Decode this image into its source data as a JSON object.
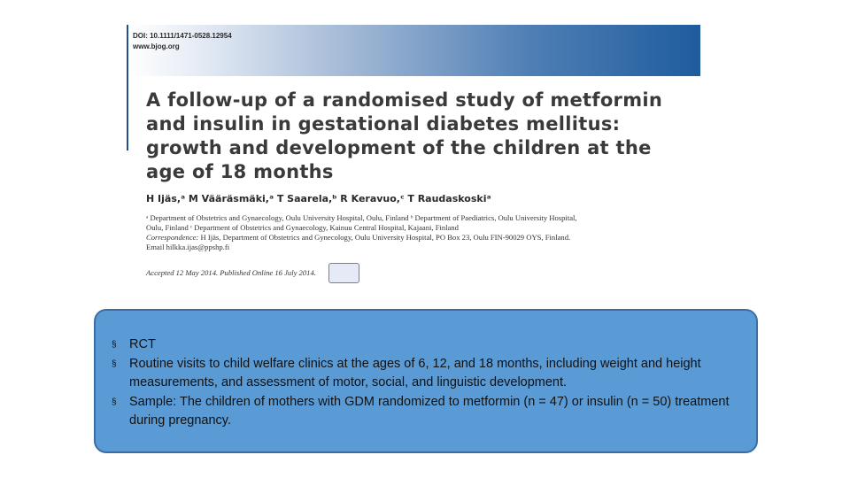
{
  "paper": {
    "doi": "DOI: 10.1111/1471-0528.12954",
    "site": "www.bjog.org",
    "title_lines": [
      "A follow-up of a randomised study of metformin",
      "and insulin in gestational diabetes mellitus:",
      "growth and development of the children at the",
      "age of 18 months"
    ],
    "authors": "H Ijäs,ᵃ M Vääräsmäki,ᵃ T Saarela,ᵇ R Keravuo,ᶜ T Raudaskoskiᵃ",
    "affiliation_lines": [
      "ᵃ Department of Obstetrics and Gynaecology, Oulu University Hospital, Oulu, Finland ᵇ Department of Paediatrics, Oulu University Hospital,",
      "Oulu, Finland ᶜ Department of Obstetrics and Gynaecology, Kainuu Central Hospital, Kajaani, Finland"
    ],
    "correspondence_label": "Correspondence:",
    "correspondence_text": " H Ijäs, Department of Obstetrics and Gynecology, Oulu University Hospital, PO Box 23, Oulu FIN-90029 OYS, Finland.",
    "email": "Email hilkka.ijas@ppshp.fi",
    "accepted": "Accepted 12 May 2014. Published Online 16 July 2014."
  },
  "summary": {
    "bullets": [
      "RCT",
      "Routine visits to child welfare clinics at the ages of 6, 12, and 18 months, including weight and height measurements, and assessment of motor, social, and linguistic development.",
      "Sample: The children of mothers with GDM randomized to metformin (n = 47) or insulin (n = 50) treatment during pregnancy."
    ],
    "bullet_symbol": "§"
  },
  "colors": {
    "box_fill": "#5b9bd5",
    "box_border": "#3a6ea5",
    "header_blue": "#1f5c9e"
  }
}
